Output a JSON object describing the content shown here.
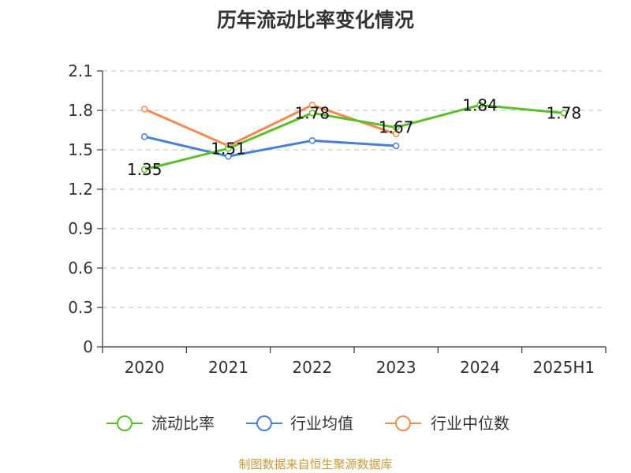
{
  "chart_data": {
    "type": "line",
    "title": "历年流动比率变化情况",
    "categories": [
      "2020",
      "2021",
      "2022",
      "2023",
      "2024",
      "2025H1"
    ],
    "ylim": [
      0,
      2.1
    ],
    "yticks": [
      "0",
      "0.3",
      "0.6",
      "0.9",
      "1.2",
      "1.5",
      "1.8",
      "2.1"
    ],
    "grid": true,
    "legend_position": "bottom",
    "series": [
      {
        "name": "流动比率",
        "color": "#5bbf2c",
        "values": [
          1.35,
          1.51,
          1.78,
          1.67,
          1.84,
          1.78
        ],
        "labels": [
          "1.35",
          "1.51",
          "1.78",
          "1.67",
          "1.84",
          "1.78"
        ]
      },
      {
        "name": "行业均值",
        "color": "#4a7fd6",
        "values": [
          1.6,
          1.45,
          1.57,
          1.53,
          null,
          null
        ]
      },
      {
        "name": "行业中位数",
        "color": "#f5894f",
        "values": [
          1.81,
          1.53,
          1.84,
          1.62,
          null,
          null
        ]
      }
    ]
  },
  "source": "制图数据来自恒生聚源数据库"
}
